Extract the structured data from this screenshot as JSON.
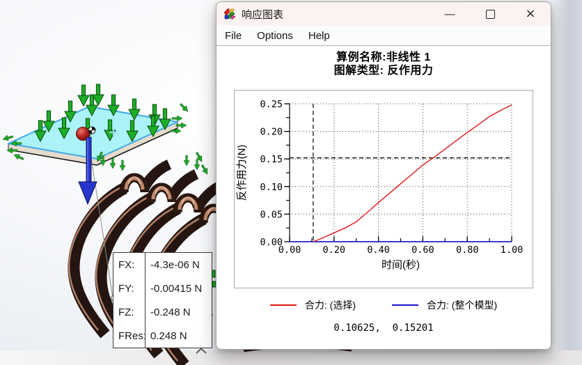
{
  "window": {
    "title": "响应图表",
    "app_icon": "solidworks-response-graph-icon",
    "caption_buttons": {
      "minimize": "—",
      "maximize": "□",
      "close": "×"
    },
    "menu": [
      "File",
      "Options",
      "Help"
    ]
  },
  "chart_data": {
    "type": "line",
    "title_lines": [
      "算例名称:非线性 1",
      "图解类型: 反作用力"
    ],
    "xlabel": "时间(秒)",
    "ylabel": "反作用力(N)",
    "xlim": [
      0,
      1
    ],
    "ylim": [
      0,
      0.25
    ],
    "x_ticks": [
      0.0,
      0.2,
      0.4,
      0.6,
      0.8,
      1.0
    ],
    "y_ticks": [
      0.0,
      0.05,
      0.1,
      0.15,
      0.2,
      0.25
    ],
    "x_minor_step": 0.1,
    "y_minor_step": 0.025,
    "grid": "dotted",
    "legend_position": "bottom",
    "crosshair": {
      "x": 0.10625,
      "y": 0.15201
    },
    "series": [
      {
        "name": "合力: (选择)",
        "color": "#e01818",
        "points": [
          [
            0.10625,
            0.0
          ],
          [
            0.15,
            0.007
          ],
          [
            0.2,
            0.016
          ],
          [
            0.25,
            0.025
          ],
          [
            0.3,
            0.036
          ],
          [
            0.35,
            0.053
          ],
          [
            0.4,
            0.071
          ],
          [
            0.45,
            0.088
          ],
          [
            0.5,
            0.105
          ],
          [
            0.55,
            0.122
          ],
          [
            0.6,
            0.139
          ],
          [
            0.65,
            0.153
          ],
          [
            0.7,
            0.168
          ],
          [
            0.75,
            0.183
          ],
          [
            0.8,
            0.198
          ],
          [
            0.85,
            0.212
          ],
          [
            0.9,
            0.227
          ],
          [
            0.95,
            0.238
          ],
          [
            1.0,
            0.248
          ]
        ]
      },
      {
        "name": "合力: (整个模型)",
        "color": "#1414c8",
        "points": [
          [
            0.0,
            0.0
          ],
          [
            1.0,
            0.0
          ]
        ]
      }
    ]
  },
  "readout": "0.10625,  0.15201",
  "callout": {
    "rows": [
      {
        "label": "FX:",
        "value": "-4.3e-06 N"
      },
      {
        "label": "FY:",
        "value": "-0.00415 N"
      },
      {
        "label": "FZ:",
        "value": "-0.248 N"
      },
      {
        "label": "FRes:",
        "value": "0.248 N"
      }
    ]
  },
  "icons": {
    "chevron_up": "^"
  },
  "model": {
    "plate_color": "#abf3f8",
    "load_arrow_color": "#1ead27",
    "tube_color": "#241510",
    "force_arrow_color": "#2735cc",
    "probe_marker_color": "#b32020"
  }
}
